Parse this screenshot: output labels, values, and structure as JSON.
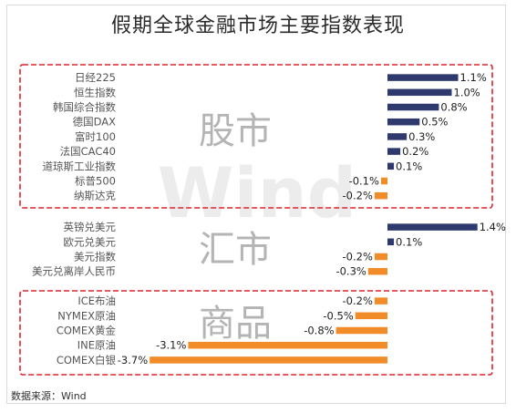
{
  "chart_data": {
    "type": "bar",
    "orientation": "horizontal",
    "title": "假期全球金融市场主要指数表现",
    "source": "数据来源：Wind",
    "watermark": "Wind",
    "unit": "%",
    "colors": {
      "positive": "#2e3a6e",
      "negative": "#f28c28",
      "group_box": "#e0242b"
    },
    "groups": [
      {
        "name": "股市",
        "boxed": true,
        "categories": [
          "日经225",
          "恒生指数",
          "韩国综合指数",
          "德国DAX",
          "富时100",
          "法国CAC40",
          "道琼斯工业指数",
          "标普500",
          "纳斯达克"
        ],
        "values": [
          1.1,
          1.0,
          0.8,
          0.5,
          0.3,
          0.2,
          0.1,
          -0.1,
          -0.2
        ],
        "labels": [
          "1.1%",
          "1.0%",
          "0.8%",
          "0.5%",
          "0.3%",
          "0.2%",
          "0.1%",
          "-0.1%",
          "-0.2%"
        ]
      },
      {
        "name": "汇市",
        "boxed": false,
        "categories": [
          "英镑兑美元",
          "欧元兑美元",
          "美元指数",
          "美元兑离岸人民币"
        ],
        "values": [
          1.4,
          0.1,
          -0.2,
          -0.3
        ],
        "labels": [
          "1.4%",
          "0.1%",
          "-0.2%",
          "-0.3%"
        ]
      },
      {
        "name": "商品",
        "boxed": true,
        "categories": [
          "ICE布油",
          "NYMEX原油",
          "COMEX黄金",
          "INE原油",
          "COMEX白银"
        ],
        "values": [
          -0.2,
          -0.5,
          -0.8,
          -3.1,
          -3.7
        ],
        "labels": [
          "-0.2%",
          "-0.5%",
          "-0.8%",
          "-3.1%",
          "-3.7%"
        ]
      }
    ]
  }
}
